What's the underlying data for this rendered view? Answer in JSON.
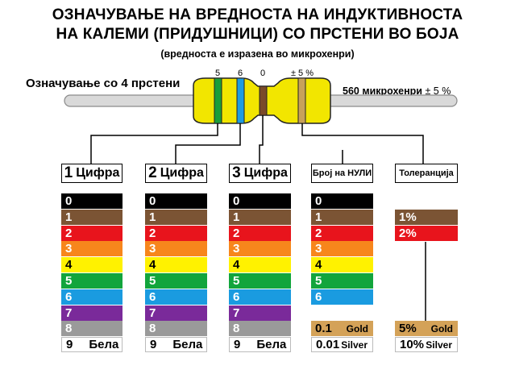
{
  "title": {
    "line1": "ОЗНАЧУВАЊЕ НА ВРЕДНОСТА НА ИНДУКТИВНОСТА",
    "line2": "НА КАЛЕМИ (ПРИДУШНИЦИ) СО ПРСТЕНИ ВО БОЈА",
    "subtitle": "(вредноста е изразена во микрохенри)"
  },
  "example": {
    "label": "Означување со 4 прстени",
    "band_labels": [
      "5",
      "6",
      "0",
      "± 5 %"
    ],
    "value": "560 микрохенри",
    "tolerance": "± 5 %",
    "band_colors": [
      "#1b9e3a",
      "#1e9be0",
      "#7a4a2a",
      "#c8a15a"
    ],
    "body_color": "#f2e600",
    "lead_color": "#d9d9d9"
  },
  "columns": [
    {
      "num": "1",
      "label": "Цифра"
    },
    {
      "num": "2",
      "label": "Цифра"
    },
    {
      "num": "3",
      "label": "Цифра"
    },
    {
      "num": "",
      "label": "Број на НУЛИ"
    },
    {
      "num": "",
      "label": "Толеранција"
    }
  ],
  "digits": [
    {
      "label": "0",
      "bg": "#000000",
      "fg": "#ffffff"
    },
    {
      "label": "1",
      "bg": "#7b5434",
      "fg": "#ffffff"
    },
    {
      "label": "2",
      "bg": "#e8141c",
      "fg": "#ffffff"
    },
    {
      "label": "3",
      "bg": "#f7861c",
      "fg": "#ffffff"
    },
    {
      "label": "4",
      "bg": "#fff200",
      "fg": "#000000"
    },
    {
      "label": "5",
      "bg": "#12a53c",
      "fg": "#ffffff"
    },
    {
      "label": "6",
      "bg": "#1a9be0",
      "fg": "#ffffff"
    },
    {
      "label": "7",
      "bg": "#7a2a9a",
      "fg": "#ffffff"
    },
    {
      "label": "8",
      "bg": "#9a9a9a",
      "fg": "#ffffff"
    },
    {
      "label": "9",
      "name": "Бела",
      "bg": "#ffffff",
      "fg": "#000000"
    }
  ],
  "zeros": [
    {
      "label": "0",
      "bg": "#000000",
      "fg": "#ffffff"
    },
    {
      "label": "1",
      "bg": "#7b5434",
      "fg": "#ffffff"
    },
    {
      "label": "2",
      "bg": "#e8141c",
      "fg": "#ffffff"
    },
    {
      "label": "3",
      "bg": "#f7861c",
      "fg": "#ffffff"
    },
    {
      "label": "4",
      "bg": "#fff200",
      "fg": "#000000"
    },
    {
      "label": "5",
      "bg": "#12a53c",
      "fg": "#ffffff"
    },
    {
      "label": "6",
      "bg": "#1a9be0",
      "fg": "#ffffff"
    },
    {
      "label": "0.1",
      "extra": "Gold",
      "bg": "#d4a258",
      "fg": "#000000"
    },
    {
      "label": "0.01",
      "extra": "Silver",
      "bg": "#ffffff",
      "fg": "#000000"
    }
  ],
  "tolerance": [
    {
      "label": "1%",
      "bg": "#7b5434",
      "fg": "#ffffff"
    },
    {
      "label": "2%",
      "bg": "#e8141c",
      "fg": "#ffffff"
    },
    {
      "label": "5%",
      "extra": "Gold",
      "bg": "#d4a258",
      "fg": "#000000"
    },
    {
      "label": "10%",
      "extra": "Silver",
      "bg": "#ffffff",
      "fg": "#000000"
    }
  ]
}
